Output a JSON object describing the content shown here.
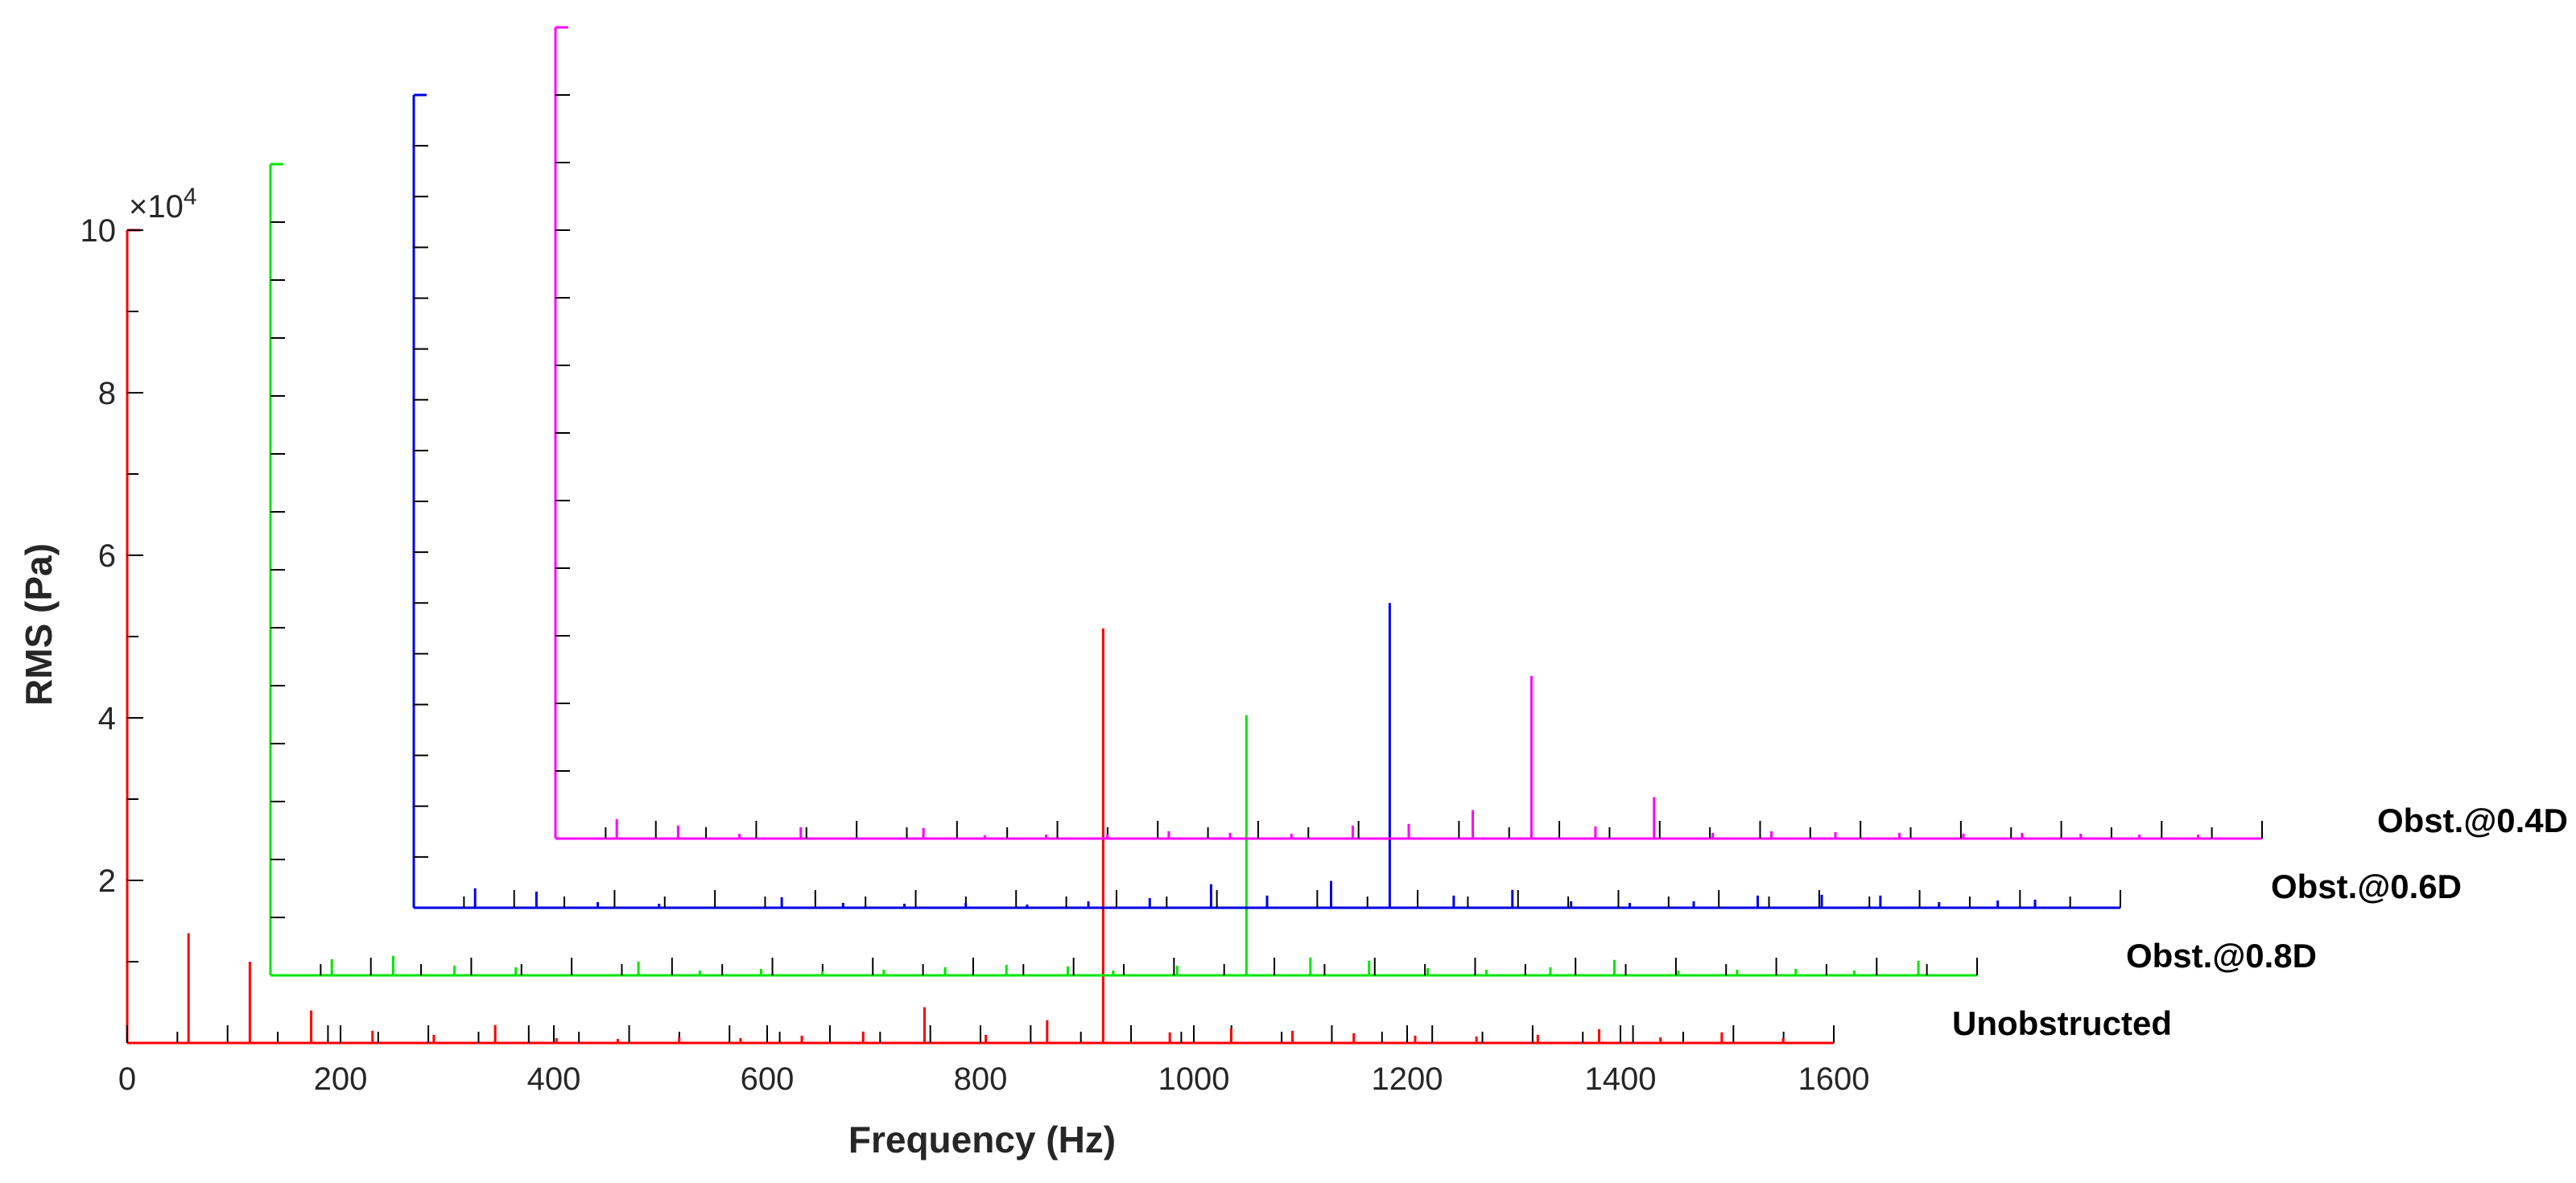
{
  "chart_data": {
    "type": "line",
    "title": "",
    "xlabel": "Frequency (Hz)",
    "ylabel": "RMS (Pa)",
    "xlim": [
      0,
      1600
    ],
    "ylim": [
      0,
      100000
    ],
    "x_ticks": [
      "0",
      "200",
      "400",
      "600",
      "800",
      "1000",
      "1200",
      "1400",
      "1600"
    ],
    "y_ticks": [
      "2",
      "4",
      "6",
      "8",
      "10"
    ],
    "y_exponent_prefix": "×10",
    "y_exponent_power": "4",
    "grid": false,
    "layout": "waterfall (stacked, offset series)",
    "series": [
      {
        "name": "Unobstructed",
        "color": "#ff0000",
        "peaks": [
          {
            "x": 57.5,
            "y": 13500
          },
          {
            "x": 115,
            "y": 10000
          },
          {
            "x": 172.5,
            "y": 4000
          },
          {
            "x": 230,
            "y": 1500
          },
          {
            "x": 287.5,
            "y": 1000
          },
          {
            "x": 345,
            "y": 2200
          },
          {
            "x": 402.5,
            "y": 600
          },
          {
            "x": 460,
            "y": 500
          },
          {
            "x": 517.5,
            "y": 700
          },
          {
            "x": 575,
            "y": 600
          },
          {
            "x": 632.5,
            "y": 900
          },
          {
            "x": 690,
            "y": 1400
          },
          {
            "x": 747.5,
            "y": 4400
          },
          {
            "x": 805,
            "y": 1000
          },
          {
            "x": 862.5,
            "y": 2800
          },
          {
            "x": 915,
            "y": 51000
          },
          {
            "x": 977.5,
            "y": 1300
          },
          {
            "x": 1035,
            "y": 1800
          },
          {
            "x": 1092.5,
            "y": 1500
          },
          {
            "x": 1150,
            "y": 1200
          },
          {
            "x": 1207.5,
            "y": 900
          },
          {
            "x": 1265,
            "y": 800
          },
          {
            "x": 1322.5,
            "y": 1000
          },
          {
            "x": 1380,
            "y": 1700
          },
          {
            "x": 1437.5,
            "y": 700
          },
          {
            "x": 1495,
            "y": 1300
          },
          {
            "x": 1552.5,
            "y": 600
          }
        ]
      },
      {
        "name": "Obst.@0.8D",
        "color": "#00e600",
        "peaks": [
          {
            "x": 57.5,
            "y": 2000
          },
          {
            "x": 115,
            "y": 2400
          },
          {
            "x": 172.5,
            "y": 1200
          },
          {
            "x": 230,
            "y": 1000
          },
          {
            "x": 345,
            "y": 1700
          },
          {
            "x": 402.5,
            "y": 600
          },
          {
            "x": 460,
            "y": 800
          },
          {
            "x": 517.5,
            "y": 500
          },
          {
            "x": 575,
            "y": 700
          },
          {
            "x": 632.5,
            "y": 1000
          },
          {
            "x": 690,
            "y": 1300
          },
          {
            "x": 747.5,
            "y": 1100
          },
          {
            "x": 790,
            "y": 600
          },
          {
            "x": 850,
            "y": 1200
          },
          {
            "x": 915,
            "y": 32000
          },
          {
            "x": 975,
            "y": 2200
          },
          {
            "x": 1030,
            "y": 1800
          },
          {
            "x": 1085,
            "y": 900
          },
          {
            "x": 1140,
            "y": 700
          },
          {
            "x": 1200,
            "y": 1000
          },
          {
            "x": 1260,
            "y": 1900
          },
          {
            "x": 1320,
            "y": 600
          },
          {
            "x": 1375,
            "y": 700
          },
          {
            "x": 1430,
            "y": 800
          },
          {
            "x": 1485,
            "y": 600
          },
          {
            "x": 1545,
            "y": 1800
          }
        ]
      },
      {
        "name": "Obst.@0.6D",
        "color": "#0000e6",
        "peaks": [
          {
            "x": 57.5,
            "y": 2400
          },
          {
            "x": 115,
            "y": 2000
          },
          {
            "x": 172.5,
            "y": 700
          },
          {
            "x": 230,
            "y": 500
          },
          {
            "x": 345,
            "y": 1300
          },
          {
            "x": 402.5,
            "y": 600
          },
          {
            "x": 460,
            "y": 500
          },
          {
            "x": 517.5,
            "y": 600
          },
          {
            "x": 575,
            "y": 400
          },
          {
            "x": 632.5,
            "y": 800
          },
          {
            "x": 690,
            "y": 1200
          },
          {
            "x": 747.5,
            "y": 2900
          },
          {
            "x": 800,
            "y": 1500
          },
          {
            "x": 860,
            "y": 3300
          },
          {
            "x": 915,
            "y": 37500
          },
          {
            "x": 975,
            "y": 1500
          },
          {
            "x": 1030,
            "y": 2200
          },
          {
            "x": 1085,
            "y": 800
          },
          {
            "x": 1140,
            "y": 600
          },
          {
            "x": 1200,
            "y": 800
          },
          {
            "x": 1260,
            "y": 1500
          },
          {
            "x": 1320,
            "y": 1600
          },
          {
            "x": 1375,
            "y": 1500
          },
          {
            "x": 1430,
            "y": 700
          },
          {
            "x": 1485,
            "y": 900
          },
          {
            "x": 1520,
            "y": 1000
          }
        ]
      },
      {
        "name": "Obst.@0.4D",
        "color": "#ff00ff",
        "peaks": [
          {
            "x": 57.5,
            "y": 2400
          },
          {
            "x": 115,
            "y": 1600
          },
          {
            "x": 172.5,
            "y": 600
          },
          {
            "x": 230,
            "y": 1400
          },
          {
            "x": 345,
            "y": 1300
          },
          {
            "x": 402.5,
            "y": 400
          },
          {
            "x": 460,
            "y": 500
          },
          {
            "x": 517.5,
            "y": 500
          },
          {
            "x": 575,
            "y": 900
          },
          {
            "x": 632.5,
            "y": 700
          },
          {
            "x": 690,
            "y": 600
          },
          {
            "x": 747.5,
            "y": 1600
          },
          {
            "x": 800,
            "y": 1800
          },
          {
            "x": 860,
            "y": 3500
          },
          {
            "x": 915,
            "y": 20000
          },
          {
            "x": 975,
            "y": 1500
          },
          {
            "x": 1030,
            "y": 5100
          },
          {
            "x": 1085,
            "y": 700
          },
          {
            "x": 1140,
            "y": 900
          },
          {
            "x": 1200,
            "y": 800
          },
          {
            "x": 1260,
            "y": 700
          },
          {
            "x": 1320,
            "y": 600
          },
          {
            "x": 1375,
            "y": 700
          },
          {
            "x": 1430,
            "y": 600
          },
          {
            "x": 1485,
            "y": 500
          },
          {
            "x": 1540,
            "y": 500
          }
        ]
      }
    ]
  }
}
